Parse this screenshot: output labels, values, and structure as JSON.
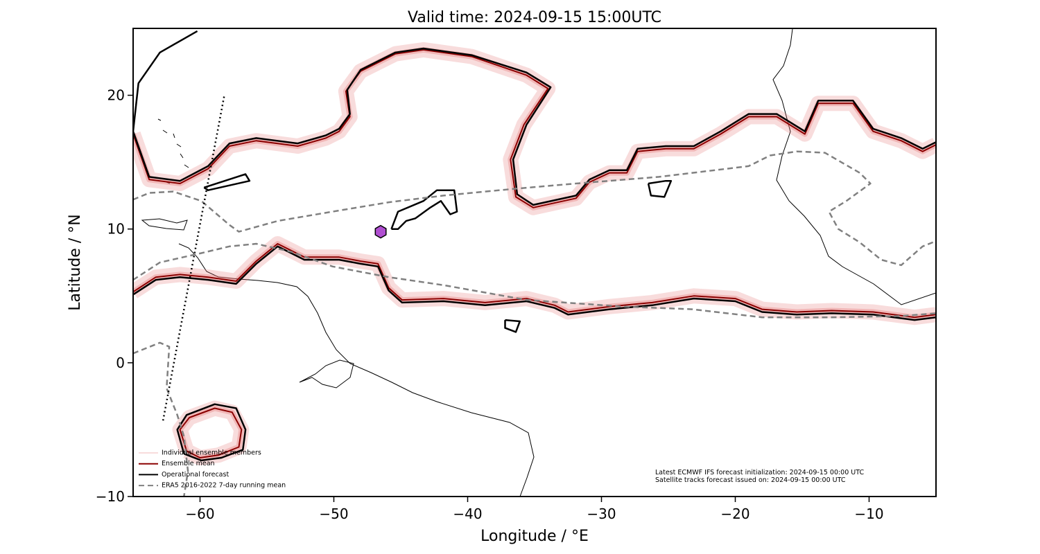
{
  "chart_data": {
    "type": "contour",
    "title": "Valid time: 2024-09-15 15:00UTC",
    "xlabel": "Longitude / °E",
    "ylabel": "Latitude / °N",
    "xlim": [
      -65,
      -5
    ],
    "ylim": [
      -10,
      25
    ],
    "xticks": [
      {
        "value": -60,
        "label": "−60"
      },
      {
        "value": -50,
        "label": "−50"
      },
      {
        "value": -40,
        "label": "−40"
      },
      {
        "value": -30,
        "label": "−30"
      },
      {
        "value": -20,
        "label": "−20"
      },
      {
        "value": -10,
        "label": "−10"
      }
    ],
    "yticks": [
      {
        "value": -10,
        "label": "−10"
      },
      0,
      10,
      20
    ],
    "series": [
      {
        "name": "Individual ensemble members",
        "color": "#e57373"
      },
      {
        "name": "Ensemble mean",
        "color": "#8b0000",
        "lines": [
          {
            "x": [
              -65,
              -63.8,
              -61.5,
              -59.4,
              -57.8,
              -55.8,
              -52.7,
              -50.6,
              -49.6,
              -48.8,
              -49.1,
              -48.0,
              -45.4,
              -43.3,
              -39.7,
              -35.6,
              -34.0,
              -35.8,
              -36.8,
              -36.4,
              -35.1,
              -31.9,
              -30.9,
              -29.4,
              -28.1,
              -27.3,
              -25.2,
              -23.1,
              -21.1,
              -19.0,
              -16.9,
              -14.8,
              -13.8,
              -11.2,
              -9.7,
              -7.6,
              -6.0,
              -5.0
            ],
            "y": [
              17.1,
              13.7,
              13.4,
              14.5,
              16.2,
              16.6,
              16.2,
              16.8,
              17.3,
              18.4,
              20.3,
              21.8,
              23.1,
              23.4,
              22.9,
              21.5,
              20.5,
              17.8,
              15.2,
              12.4,
              11.6,
              12.3,
              13.5,
              14.2,
              14.2,
              15.8,
              16.0,
              16.0,
              17.1,
              18.4,
              18.4,
              17.1,
              19.4,
              19.4,
              17.3,
              16.6,
              15.8,
              16.3
            ]
          },
          {
            "x": [
              -65,
              -63.3,
              -61.5,
              -59.4,
              -57.3,
              -55.8,
              -54.2,
              -52.2,
              -49.6,
              -48.0,
              -46.7,
              -45.9,
              -44.9,
              -41.8,
              -38.7,
              -35.6,
              -33.5,
              -32.5,
              -29.4,
              -26.2,
              -23.1,
              -20.0,
              -18.0,
              -15.4,
              -12.8,
              -9.7,
              -6.6,
              -5.0
            ],
            "y": [
              5.3,
              6.4,
              6.6,
              6.4,
              6.1,
              7.6,
              8.9,
              7.9,
              7.9,
              7.6,
              7.4,
              5.6,
              4.7,
              4.8,
              4.5,
              4.8,
              4.3,
              3.8,
              4.2,
              4.5,
              5.0,
              4.8,
              4.0,
              3.8,
              3.9,
              3.8,
              3.4,
              3.6
            ]
          },
          {
            "x": [
              -61.0,
              -61.5,
              -60.8,
              -58.9,
              -57.6,
              -56.9,
              -57.1,
              -58.6,
              -60.0,
              -61.0
            ],
            "y": [
              -6.6,
              -5.0,
              -4.1,
              -3.4,
              -3.7,
              -5.0,
              -6.3,
              -6.9,
              -7.1,
              -6.6
            ]
          }
        ]
      },
      {
        "name": "Operational forecast",
        "color": "#000000",
        "lines": [
          {
            "x": [
              -60.2,
              -63.0,
              -64.6,
              -65,
              -63.8,
              -61.5,
              -59.4,
              -57.8,
              -55.8,
              -52.7,
              -50.6,
              -49.6,
              -48.8,
              -49.0,
              -48.0,
              -45.4,
              -43.3,
              -39.7,
              -35.6,
              -33.8,
              -35.6,
              -36.6,
              -36.3,
              -35.1,
              -31.9,
              -30.9,
              -29.4,
              -28.1,
              -27.3,
              -25.2,
              -23.1,
              -21.1,
              -19.0,
              -16.9,
              -14.8,
              -13.8,
              -11.2,
              -9.7,
              -7.6,
              -6.0,
              -5.0
            ],
            "y": [
              24.8,
              23.2,
              20.9,
              17.3,
              13.9,
              13.6,
              14.7,
              16.4,
              16.8,
              16.4,
              17.0,
              17.5,
              18.6,
              20.4,
              21.9,
              23.2,
              23.5,
              23.0,
              21.7,
              20.6,
              17.8,
              15.2,
              12.6,
              11.8,
              12.5,
              13.7,
              14.4,
              14.4,
              16.0,
              16.2,
              16.2,
              17.3,
              18.6,
              18.6,
              17.3,
              19.6,
              19.6,
              17.5,
              16.8,
              16.0,
              16.5
            ]
          },
          {
            "x": [
              -65,
              -63.3,
              -61.5,
              -59.4,
              -57.3,
              -55.8,
              -54.2,
              -52.2,
              -49.6,
              -48.0,
              -46.7,
              -45.9,
              -44.9,
              -41.8,
              -38.7,
              -35.6,
              -33.5,
              -32.5,
              -29.4,
              -26.2,
              -23.1,
              -20.0,
              -18.0,
              -15.4,
              -12.8,
              -9.7,
              -6.6,
              -5.0
            ],
            "y": [
              5.1,
              6.2,
              6.4,
              6.2,
              5.9,
              7.4,
              8.7,
              7.7,
              7.7,
              7.4,
              7.2,
              5.4,
              4.5,
              4.6,
              4.3,
              4.6,
              4.1,
              3.6,
              4.0,
              4.3,
              4.8,
              4.6,
              3.8,
              3.6,
              3.7,
              3.6,
              3.2,
              3.4
            ]
          },
          {
            "x": [
              -45.7,
              -45.2,
              -43.3,
              -42.3,
              -41.0,
              -40.8,
              -41.3,
              -42.0,
              -42.8,
              -43.9,
              -44.6,
              -45.2,
              -45.7
            ],
            "y": [
              10.0,
              11.3,
              12.1,
              12.9,
              12.9,
              11.3,
              11.1,
              12.1,
              11.6,
              10.8,
              10.6,
              10.0,
              10.0
            ]
          },
          {
            "x": [
              -61.2,
              -61.7,
              -61.0,
              -58.9,
              -57.3,
              -56.6,
              -56.8,
              -58.4,
              -59.9,
              -61.2
            ],
            "y": [
              -6.8,
              -5.0,
              -3.9,
              -3.1,
              -3.4,
              -5.0,
              -6.5,
              -7.1,
              -7.3,
              -6.8
            ]
          },
          {
            "x": [
              -26.5,
              -25.2,
              -24.8,
              -25.3,
              -26.3,
              -26.5
            ],
            "y": [
              13.4,
              13.6,
              13.6,
              12.4,
              12.5,
              13.4
            ]
          },
          {
            "x": [
              -37.2,
              -36.1,
              -36.4,
              -37.2,
              -37.2
            ],
            "y": [
              3.2,
              3.1,
              2.3,
              2.6,
              3.2
            ]
          },
          {
            "x": [
              -59.7,
              -56.6,
              -56.3,
              -59.4,
              -59.7
            ],
            "y": [
              13.1,
              14.1,
              13.6,
              12.9,
              13.1
            ]
          }
        ]
      },
      {
        "name": "ERA5 2016-2022 7-day running mean",
        "color": "#808080",
        "dashed": true,
        "lines": [
          {
            "x": [
              -65,
              -63.8,
              -62.0,
              -59.9,
              -57.8,
              -57.1,
              -54.2,
              -50.1,
              -45.9,
              -41.8,
              -36.6,
              -31.9,
              -25.7,
              -19.0,
              -17.4,
              -15.4,
              -13.3,
              -10.7,
              -9.9,
              -11.7,
              -13.0,
              -12.3,
              -10.7,
              -9.1,
              -7.6,
              -6.0,
              -5.0
            ],
            "y": [
              12.2,
              12.7,
              12.8,
              12.1,
              10.3,
              9.8,
              10.6,
              11.3,
              12.0,
              12.5,
              13.0,
              13.4,
              13.9,
              14.7,
              15.5,
              15.8,
              15.7,
              14.2,
              13.4,
              12.1,
              11.3,
              10.0,
              9.0,
              7.7,
              7.3,
              8.7,
              9.1
            ]
          },
          {
            "x": [
              -65,
              -63.0,
              -59.9,
              -57.8,
              -55.8,
              -53.2,
              -50.1,
              -45.9,
              -41.8,
              -35.6,
              -28.4,
              -23.2,
              -18.0,
              -12.8,
              -7.6,
              -5.0
            ],
            "y": [
              6.2,
              7.5,
              8.2,
              8.7,
              8.9,
              8.3,
              7.2,
              6.4,
              5.8,
              4.7,
              4.2,
              4.0,
              3.4,
              3.4,
              3.5,
              3.7
            ]
          },
          {
            "x": [
              -65,
              -63.0,
              -62.3,
              -62.5,
              -61.7,
              -61.2,
              -60.9,
              -61.2
            ],
            "y": [
              0.7,
              1.5,
              1.2,
              -1.9,
              -3.9,
              -5.5,
              -8.1,
              -10
            ]
          }
        ]
      }
    ],
    "track": {
      "x": [
        -58.2,
        -62.8
      ],
      "y": [
        19.9,
        -4.5
      ]
    },
    "marker": {
      "x": -46.5,
      "y": 9.8,
      "color": "#b04fd1"
    },
    "annotations": [
      "Latest ECMWF IFS forecast initialization: 2024-09-15 00:00 UTC",
      "Satellite tracks forecast issued on: 2024-09-15 00:00 UTC"
    ]
  }
}
